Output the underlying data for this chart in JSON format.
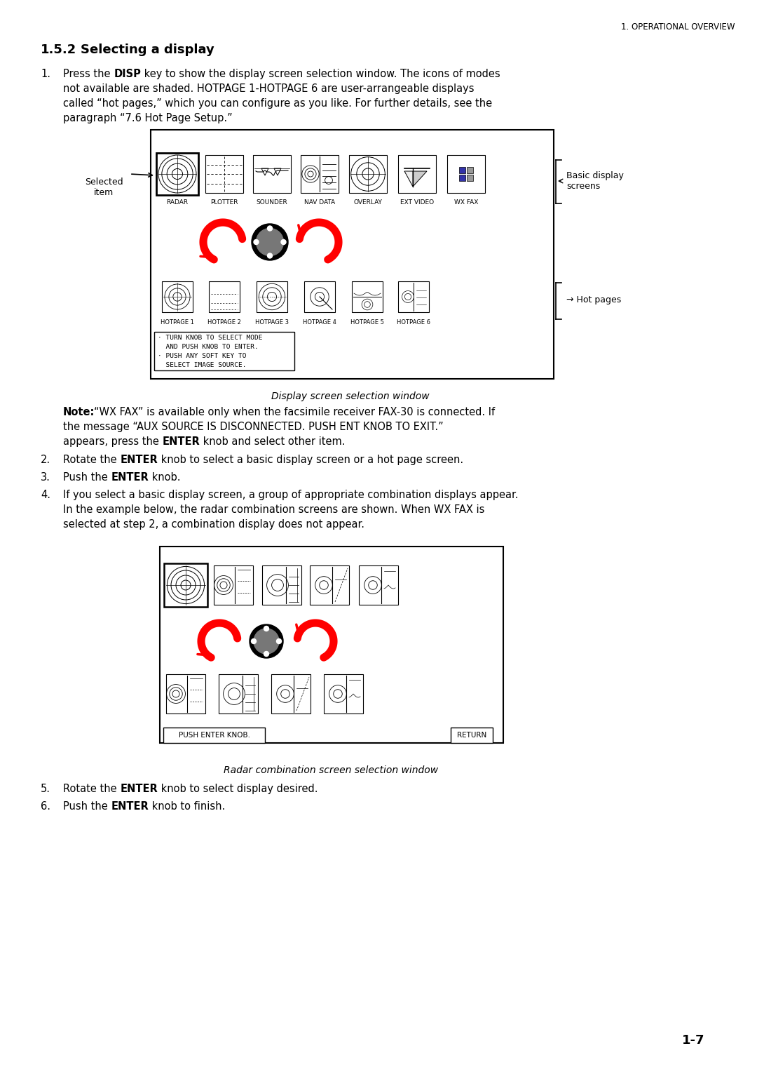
{
  "page_header": "1. OPERATIONAL OVERVIEW",
  "section_title": "1.5.2   Selecting a display",
  "caption1": "Display screen selection window",
  "caption2": "Radar combination screen selection window",
  "diagram1_labels": [
    "RADAR",
    "PLOTTER",
    "SOUNDER",
    "NAV DATA",
    "OVERLAY",
    "EXT VIDEO",
    "WX FAX"
  ],
  "hotpage_labels": [
    "HOTPAGE 1",
    "HOTPAGE 2",
    "HOTPAGE 3",
    "HOTPAGE 4",
    "HOTPAGE 5",
    "HOTPAGE 6"
  ],
  "selected_label": "Selected\nitem",
  "basic_screens_label": "Basic display\nscreens",
  "hot_pages_label": "Hot pages",
  "return_label": "RETURN",
  "push_enter_label": "PUSH ENTER KNOB.",
  "page_num": "1-7",
  "bg_color": "#ffffff",
  "text_color": "#000000"
}
